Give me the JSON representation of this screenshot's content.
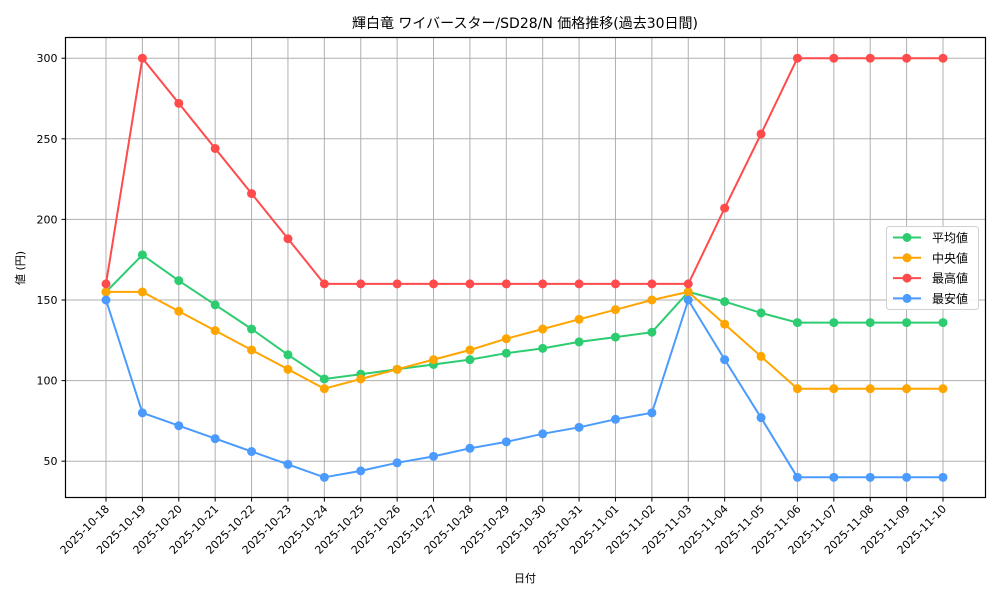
{
  "chart_data": {
    "type": "line",
    "title": "輝白竜 ワイバースター/SD28/N 価格推移(過去30日間)",
    "xlabel": "日付",
    "ylabel": "値 (円)",
    "ylim": [
      27,
      314
    ],
    "yticks": [
      50,
      100,
      150,
      200,
      250,
      300
    ],
    "grid": true,
    "legend_position": "center right",
    "categories": [
      "2025-10-18",
      "2025-10-19",
      "2025-10-20",
      "2025-10-21",
      "2025-10-22",
      "2025-10-23",
      "2025-10-24",
      "2025-10-25",
      "2025-10-26",
      "2025-10-27",
      "2025-10-28",
      "2025-10-29",
      "2025-10-30",
      "2025-10-31",
      "2025-11-01",
      "2025-11-02",
      "2025-11-03",
      "2025-11-04",
      "2025-11-05",
      "2025-11-06",
      "2025-11-07",
      "2025-11-08",
      "2025-11-09",
      "2025-11-10"
    ],
    "series": [
      {
        "name": "平均値",
        "color": "#2ecc71",
        "values": [
          155,
          178,
          162,
          147,
          132,
          116,
          101,
          104,
          107,
          110,
          113,
          117,
          120,
          124,
          127,
          130,
          155,
          149,
          142,
          136,
          136,
          136,
          136,
          136
        ]
      },
      {
        "name": "中央値",
        "color": "#ffa500",
        "values": [
          155,
          155,
          143,
          131,
          119,
          107,
          95,
          101,
          107,
          113,
          119,
          126,
          132,
          138,
          144,
          150,
          155,
          135,
          115,
          95,
          95,
          95,
          95,
          95
        ]
      },
      {
        "name": "最高値",
        "color": "#ff4b4b",
        "values": [
          160,
          300,
          272,
          244,
          216,
          188,
          160,
          160,
          160,
          160,
          160,
          160,
          160,
          160,
          160,
          160,
          160,
          207,
          253,
          300,
          300,
          300,
          300,
          300
        ]
      },
      {
        "name": "最安値",
        "color": "#4b9bff",
        "values": [
          150,
          80,
          72,
          64,
          56,
          48,
          40,
          44,
          49,
          53,
          58,
          62,
          67,
          71,
          76,
          80,
          150,
          113,
          77,
          40,
          40,
          40,
          40,
          40
        ]
      }
    ]
  }
}
